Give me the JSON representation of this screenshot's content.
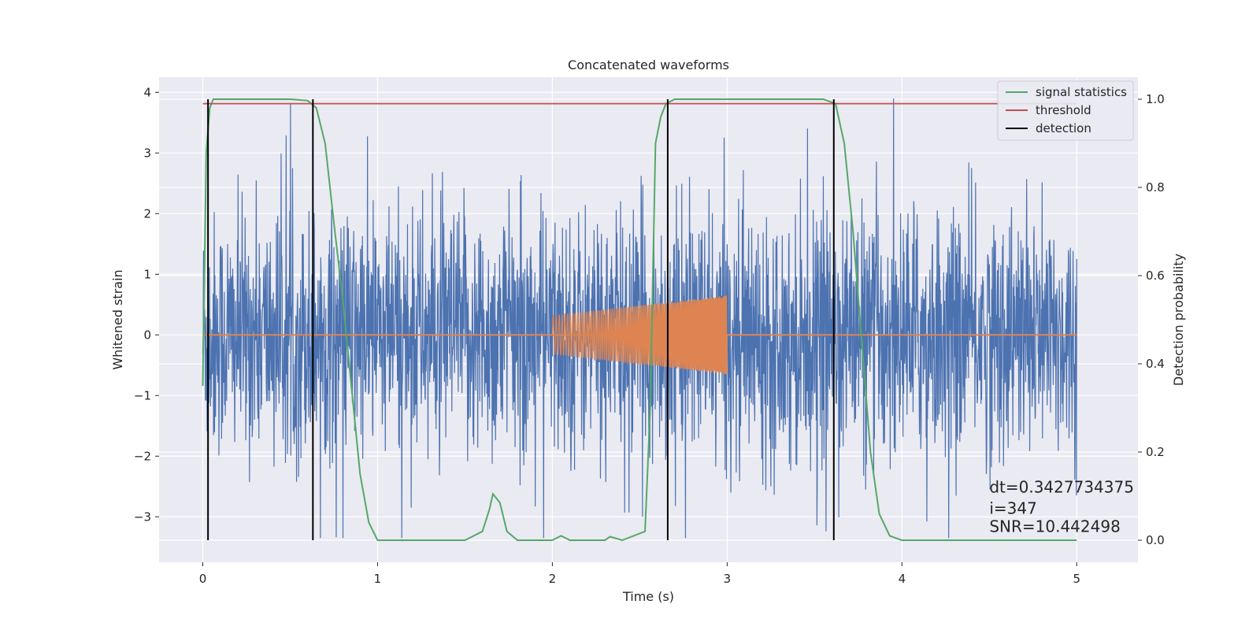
{
  "chart_data": {
    "type": "line",
    "title": "Concatenated waveforms",
    "xlabel": "Time (s)",
    "ylabel": "Whitened strain",
    "ylabel_right": "Detection probability",
    "xlim": [
      -0.25,
      5.35
    ],
    "ylim": [
      -3.75,
      4.25
    ],
    "ylim_right": [
      -0.05,
      1.05
    ],
    "x_ticks": [
      0,
      1,
      2,
      3,
      4,
      5
    ],
    "x_tick_labels": [
      "0",
      "1",
      "2",
      "3",
      "4",
      "5"
    ],
    "y_ticks": [
      -3,
      -2,
      -1,
      0,
      1,
      2,
      3,
      4
    ],
    "y_tick_labels": [
      "−3",
      "−2",
      "−1",
      "0",
      "1",
      "2",
      "3",
      "4"
    ],
    "y_right_ticks": [
      0.0,
      0.2,
      0.4,
      0.6,
      0.8,
      1.0
    ],
    "y_right_tick_labels": [
      "0.0",
      "0.2",
      "0.4",
      "0.6",
      "0.8",
      "1.0"
    ],
    "grid": true,
    "legend_position": "top-right",
    "colors": {
      "plot_bg": "#eaeaf2",
      "grid": "#ffffff",
      "strain": "#4c72b0",
      "template": "#dd8452",
      "signal_statistics": "#55a868",
      "threshold": "#c44e52",
      "detection": "#000000"
    },
    "series": [
      {
        "name": "",
        "axis": "left",
        "description_kind": "noise",
        "x_range": [
          0,
          5
        ],
        "typical_amplitude": 1.0,
        "peak_max": 3.9,
        "peak_min": -3.35
      },
      {
        "name": "",
        "axis": "left",
        "description_kind": "chirp",
        "x_range": [
          2,
          3
        ],
        "amplitude_start": 0.32,
        "amplitude_end": 0.65,
        "baseline": 0.0
      },
      {
        "name": "signal statistics",
        "axis": "right",
        "x": [
          0,
          0.02,
          0.04,
          0.06,
          0.1,
          0.5,
          0.6,
          0.65,
          0.7,
          0.75,
          0.8,
          0.85,
          0.9,
          0.95,
          1.0,
          1.5,
          1.6,
          1.64,
          1.66,
          1.7,
          1.74,
          1.8,
          2.0,
          2.05,
          2.1,
          2.3,
          2.33,
          2.4,
          2.53,
          2.56,
          2.59,
          2.62,
          2.65,
          2.7,
          3.55,
          3.62,
          3.67,
          3.72,
          3.77,
          3.82,
          3.87,
          3.93,
          4.0,
          5.0
        ],
        "y": [
          0.35,
          0.88,
          0.98,
          1.0,
          1.0,
          1.0,
          0.997,
          0.98,
          0.9,
          0.72,
          0.55,
          0.35,
          0.15,
          0.04,
          0.0,
          0.0,
          0.02,
          0.07,
          0.105,
          0.085,
          0.02,
          0.0,
          0.0,
          0.01,
          0.0,
          0.0,
          0.008,
          0.0,
          0.02,
          0.3,
          0.9,
          0.96,
          0.99,
          1.0,
          1.0,
          0.99,
          0.9,
          0.7,
          0.45,
          0.2,
          0.06,
          0.01,
          0.0,
          0.0
        ]
      },
      {
        "name": "threshold",
        "axis": "right",
        "x": [
          0,
          5
        ],
        "y": [
          0.99,
          0.99
        ]
      },
      {
        "name": "detection",
        "axis": "right",
        "kind": "vlines",
        "x": [
          0.03,
          0.63,
          2.66,
          3.61
        ],
        "ymin": 0.0,
        "ymax": 1.0
      }
    ],
    "legend": [
      "signal statistics",
      "threshold",
      "detection"
    ],
    "annotations": [
      {
        "text": "dt=0.3427734375",
        "x": 4.5,
        "y": -2.6
      },
      {
        "text": " i=347",
        "x": 4.5,
        "y": -2.95
      },
      {
        "text": "SNR=10.442498",
        "x": 4.5,
        "y": -3.25
      }
    ]
  }
}
